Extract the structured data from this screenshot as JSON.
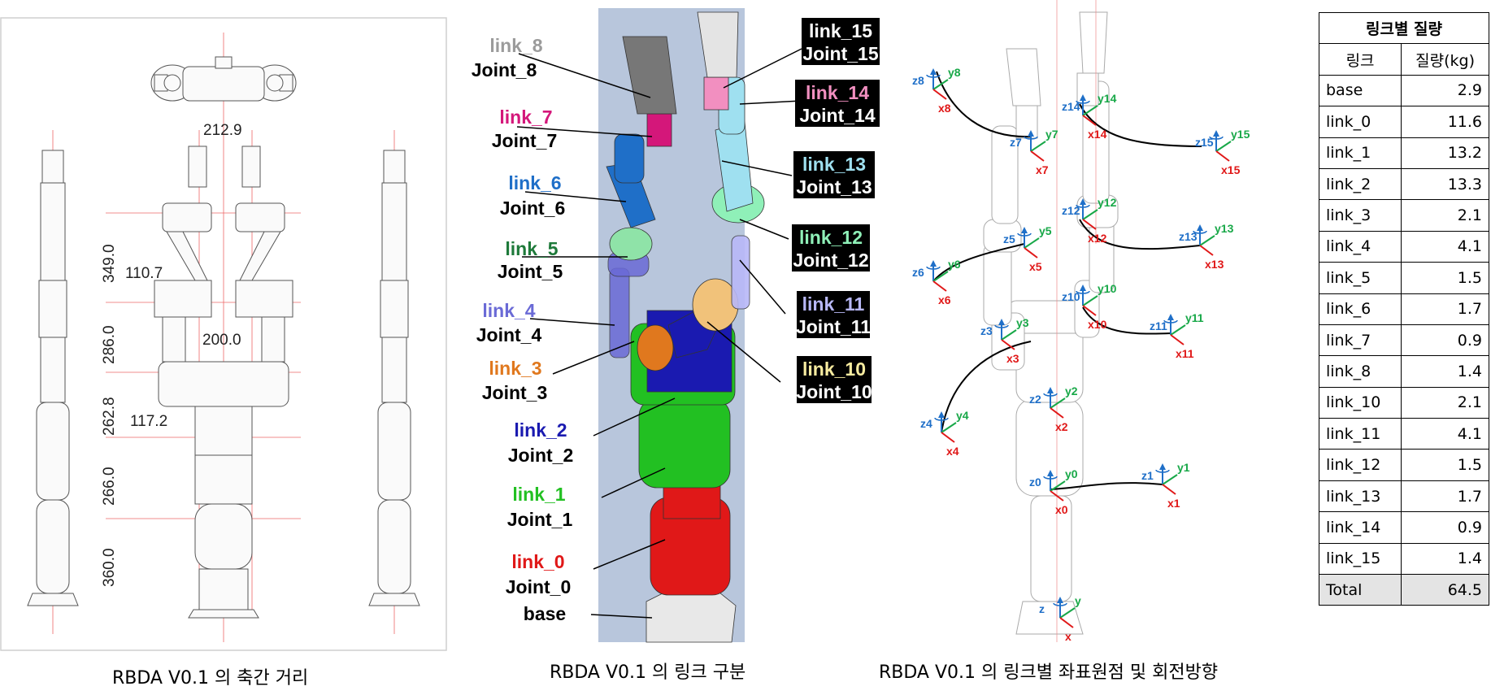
{
  "captions": {
    "left": "RBDA V0.1 의 축간 거리",
    "middle": "RBDA V0.1 의 링크 구분",
    "right": "RBDA V0.1 의 링크별 좌표원점 및 회전방향"
  },
  "dimensions": {
    "top_width": "212.9",
    "mid_width": "200.0",
    "offset_upper": "110.7",
    "offset_lower": "117.2",
    "vertical": [
      "349.0",
      "286.0",
      "262.8",
      "266.0",
      "360.0"
    ]
  },
  "links": [
    {
      "link": "link_8",
      "joint": "Joint_8",
      "color": "#9b9b9b",
      "inverse": false
    },
    {
      "link": "link_7",
      "joint": "Joint_7",
      "color": "#d4177a",
      "inverse": false
    },
    {
      "link": "link_6",
      "joint": "Joint_6",
      "color": "#1f6fc8",
      "inverse": false
    },
    {
      "link": "link_5",
      "joint": "Joint_5",
      "color": "#1e7a3a",
      "inverse": false
    },
    {
      "link": "link_4",
      "joint": "Joint_4",
      "color": "#6a6ad6",
      "inverse": false
    },
    {
      "link": "link_3",
      "joint": "Joint_3",
      "color": "#e0781e",
      "inverse": false
    },
    {
      "link": "link_2",
      "joint": "Joint_2",
      "color": "#1a1ab0",
      "inverse": false
    },
    {
      "link": "link_1",
      "joint": "Joint_1",
      "color": "#22c022",
      "inverse": false
    },
    {
      "link": "link_0",
      "joint": "Joint_0",
      "color": "#e01818",
      "inverse": false
    },
    {
      "link": "link_15",
      "joint": "Joint_15",
      "color": "#ffffff",
      "inverse": true
    },
    {
      "link": "link_14",
      "joint": "Joint_14",
      "color": "#f28fc0",
      "inverse": true
    },
    {
      "link": "link_13",
      "joint": "Joint_13",
      "color": "#9fe0f0",
      "inverse": true
    },
    {
      "link": "link_12",
      "joint": "Joint_12",
      "color": "#8ff0b8",
      "inverse": true
    },
    {
      "link": "link_11",
      "joint": "Joint_11",
      "color": "#b8b8f8",
      "inverse": true
    },
    {
      "link": "link_10",
      "joint": "Joint_10",
      "color": "#f8eca0",
      "inverse": true
    }
  ],
  "base_label": "base",
  "frames": [
    {
      "z": "z8",
      "y": "y8",
      "x": "x8"
    },
    {
      "z": "z7",
      "y": "y7",
      "x": "x7"
    },
    {
      "z": "z14",
      "y": "y14",
      "x": "x14"
    },
    {
      "z": "z15",
      "y": "y15",
      "x": "x15"
    },
    {
      "z": "z12",
      "y": "y12",
      "x": "x12"
    },
    {
      "z": "z13",
      "y": "y13",
      "x": "x13"
    },
    {
      "z": "z5",
      "y": "y5",
      "x": "x5"
    },
    {
      "z": "z6",
      "y": "y6",
      "x": "x6"
    },
    {
      "z": "z10",
      "y": "y10",
      "x": "x10"
    },
    {
      "z": "z11",
      "y": "y11",
      "x": "x11"
    },
    {
      "z": "z3",
      "y": "y3",
      "x": "x3"
    },
    {
      "z": "z4",
      "y": "y4",
      "x": "x4"
    },
    {
      "z": "z2",
      "y": "y2",
      "x": "x2"
    },
    {
      "z": "z0",
      "y": "y0",
      "x": "x0"
    },
    {
      "z": "z1",
      "y": "y1",
      "x": "x1"
    },
    {
      "z": "z",
      "y": "y",
      "x": "x"
    }
  ],
  "axis_colors": {
    "x": "#e01818",
    "y": "#18a848",
    "z": "#1f6fc8"
  },
  "mass_table": {
    "title": "링크별 질량",
    "col_link": "링크",
    "col_mass": "질량(kg)",
    "rows": [
      {
        "link": "base",
        "mass": "2.9"
      },
      {
        "link": "link_0",
        "mass": "11.6"
      },
      {
        "link": "link_1",
        "mass": "13.2"
      },
      {
        "link": "link_2",
        "mass": "13.3"
      },
      {
        "link": "link_3",
        "mass": "2.1"
      },
      {
        "link": "link_4",
        "mass": "4.1"
      },
      {
        "link": "link_5",
        "mass": "1.5"
      },
      {
        "link": "link_6",
        "mass": "1.7"
      },
      {
        "link": "link_7",
        "mass": "0.9"
      },
      {
        "link": "link_8",
        "mass": "1.4"
      },
      {
        "link": "link_10",
        "mass": "2.1"
      },
      {
        "link": "link_11",
        "mass": "4.1"
      },
      {
        "link": "link_12",
        "mass": "1.5"
      },
      {
        "link": "link_13",
        "mass": "1.7"
      },
      {
        "link": "link_14",
        "mass": "0.9"
      },
      {
        "link": "link_15",
        "mass": "1.4"
      }
    ],
    "total_label": "Total",
    "total_mass": "64.5"
  }
}
